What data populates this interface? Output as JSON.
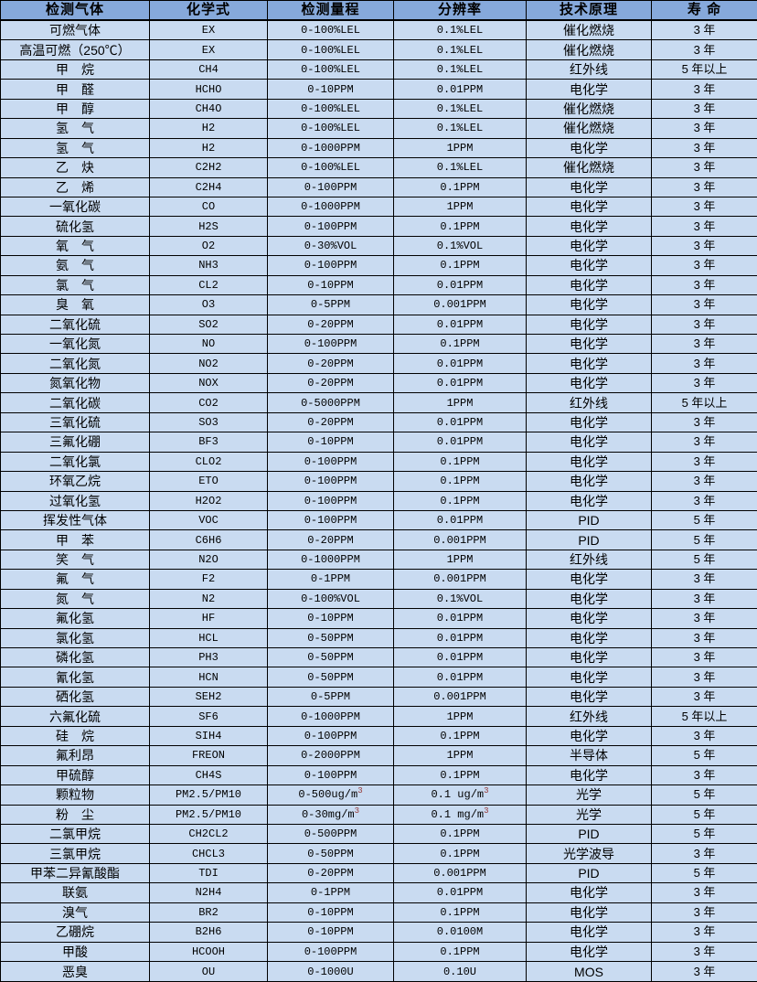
{
  "colors": {
    "header_bg": "#86a9db",
    "row_bg": "#c9dbf1",
    "border": "#000000",
    "text": "#000000",
    "superscript": "#963634"
  },
  "table": {
    "headers": [
      "检测气体",
      "化学式",
      "检测量程",
      "分辨率",
      "技术原理",
      "寿 命"
    ],
    "rows": [
      [
        "可燃气体",
        "EX",
        "0-100%LEL",
        "0.1%LEL",
        "催化燃烧",
        "3 年"
      ],
      [
        "高温可燃（250℃）",
        "EX",
        "0-100%LEL",
        "0.1%LEL",
        "催化燃烧",
        "3 年"
      ],
      [
        "甲　烷",
        "CH4",
        "0-100%LEL",
        "0.1%LEL",
        "红外线",
        "5 年以上"
      ],
      [
        "甲　醛",
        "HCHO",
        "0-10PPM",
        "0.01PPM",
        "电化学",
        "3 年"
      ],
      [
        "甲　醇",
        "CH4O",
        "0-100%LEL",
        "0.1%LEL",
        "催化燃烧",
        "3 年"
      ],
      [
        "氢　气",
        "H2",
        "0-100%LEL",
        "0.1%LEL",
        "催化燃烧",
        "3 年"
      ],
      [
        "氢　气",
        "H2",
        "0-1000PPM",
        "1PPM",
        "电化学",
        "3 年"
      ],
      [
        "乙　炔",
        "C2H2",
        "0-100%LEL",
        "0.1%LEL",
        "催化燃烧",
        "3 年"
      ],
      [
        "乙　烯",
        "C2H4",
        "0-100PPM",
        "0.1PPM",
        "电化学",
        "3 年"
      ],
      [
        "一氧化碳",
        "CO",
        "0-1000PPM",
        "1PPM",
        "电化学",
        "3 年"
      ],
      [
        "硫化氢",
        "H2S",
        "0-100PPM",
        "0.1PPM",
        "电化学",
        "3 年"
      ],
      [
        "氧　气",
        "O2",
        "0-30%VOL",
        "0.1%VOL",
        "电化学",
        "3 年"
      ],
      [
        "氨　气",
        "NH3",
        "0-100PPM",
        "0.1PPM",
        "电化学",
        "3 年"
      ],
      [
        "氯　气",
        "CL2",
        "0-10PPM",
        "0.01PPM",
        "电化学",
        "3 年"
      ],
      [
        "臭　氧",
        "O3",
        "0-5PPM",
        "0.001PPM",
        "电化学",
        "3 年"
      ],
      [
        "二氧化硫",
        "SO2",
        "0-20PPM",
        "0.01PPM",
        "电化学",
        "3 年"
      ],
      [
        "一氧化氮",
        "NO",
        "0-100PPM",
        "0.1PPM",
        "电化学",
        "3 年"
      ],
      [
        "二氧化氮",
        "NO2",
        "0-20PPM",
        "0.01PPM",
        "电化学",
        "3 年"
      ],
      [
        "氮氧化物",
        "NOX",
        "0-20PPM",
        "0.01PPM",
        "电化学",
        "3 年"
      ],
      [
        "二氧化碳",
        "CO2",
        "0-5000PPM",
        "1PPM",
        "红外线",
        "5 年以上"
      ],
      [
        "三氧化硫",
        "SO3",
        "0-20PPM",
        "0.01PPM",
        "电化学",
        "3 年"
      ],
      [
        "三氟化硼",
        "BF3",
        "0-10PPM",
        "0.01PPM",
        "电化学",
        "3 年"
      ],
      [
        "二氧化氯",
        "CLO2",
        "0-100PPM",
        "0.1PPM",
        "电化学",
        "3 年"
      ],
      [
        "环氧乙烷",
        "ETO",
        "0-100PPM",
        "0.1PPM",
        "电化学",
        "3 年"
      ],
      [
        "过氧化氢",
        "H2O2",
        "0-100PPM",
        "0.1PPM",
        "电化学",
        "3 年"
      ],
      [
        "挥发性气体",
        "VOC",
        "0-100PPM",
        "0.01PPM",
        "PID",
        "5 年"
      ],
      [
        "甲　苯",
        "C6H6",
        "0-20PPM",
        "0.001PPM",
        "PID",
        "5 年"
      ],
      [
        "笑　气",
        "N2O",
        "0-1000PPM",
        "1PPM",
        "红外线",
        "5 年"
      ],
      [
        "氟　气",
        "F2",
        "0-1PPM",
        "0.001PPM",
        "电化学",
        "3 年"
      ],
      [
        "氮　气",
        "N2",
        "0-100%VOL",
        "0.1%VOL",
        "电化学",
        "3 年"
      ],
      [
        "氟化氢",
        "HF",
        "0-10PPM",
        "0.01PPM",
        "电化学",
        "3 年"
      ],
      [
        "氯化氢",
        "HCL",
        "0-50PPM",
        "0.01PPM",
        "电化学",
        "3 年"
      ],
      [
        "磷化氢",
        "PH3",
        "0-50PPM",
        "0.01PPM",
        "电化学",
        "3 年"
      ],
      [
        "氰化氢",
        "HCN",
        "0-50PPM",
        "0.01PPM",
        "电化学",
        "3 年"
      ],
      [
        "硒化氢",
        "SEH2",
        "0-5PPM",
        "0.001PPM",
        "电化学",
        "3 年"
      ],
      [
        "六氟化硫",
        "SF6",
        "0-1000PPM",
        "1PPM",
        "红外线",
        "5 年以上"
      ],
      [
        "硅　烷",
        "SIH4",
        "0-100PPM",
        "0.1PPM",
        "电化学",
        "3 年"
      ],
      [
        "氟利昂",
        "FREON",
        "0-2000PPM",
        "1PPM",
        "半导体",
        "5 年"
      ],
      [
        "甲硫醇",
        "CH4S",
        "0-100PPM",
        "0.1PPM",
        "电化学",
        "3 年"
      ],
      [
        "颗粒物",
        "PM2.5/PM10",
        "0-500ug/m^3",
        "0.1 ug/m^3",
        "光学",
        "5 年"
      ],
      [
        "粉　尘",
        "PM2.5/PM10",
        "0-30mg/m^3",
        "0.1 mg/m^3",
        "光学",
        "5 年"
      ],
      [
        "二氯甲烷",
        "CH2CL2",
        "0-500PPM",
        "0.1PPM",
        "PID",
        "5 年"
      ],
      [
        "三氯甲烷",
        "CHCL3",
        "0-50PPM",
        "0.1PPM",
        "光学波导",
        "3 年"
      ],
      [
        "甲苯二异氰酸酯",
        "TDI",
        "0-20PPM",
        "0.001PPM",
        "PID",
        "5 年"
      ],
      [
        "联氨",
        "N2H4",
        "0-1PPM",
        "0.01PPM",
        "电化学",
        "3 年"
      ],
      [
        "溴气",
        "BR2",
        "0-10PPM",
        "0.1PPM",
        "电化学",
        "3 年"
      ],
      [
        "乙硼烷",
        "B2H6",
        "0-10PPM",
        "0.0100M",
        "电化学",
        "3 年"
      ],
      [
        "甲酸",
        "HCOOH",
        "0-100PPM",
        "0.1PPM",
        "电化学",
        "3 年"
      ],
      [
        "恶臭",
        "OU",
        "0-1000U",
        "0.10U",
        "MOS",
        "3 年"
      ]
    ]
  }
}
